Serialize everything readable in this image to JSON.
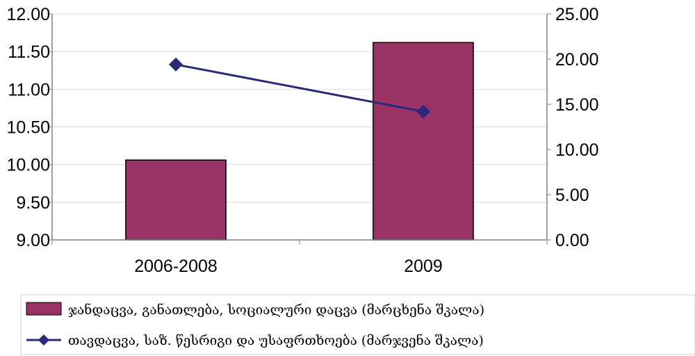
{
  "chart_data": {
    "type": "bar+line",
    "categories": [
      "2006-2008",
      "2009"
    ],
    "series": [
      {
        "name": "ჯანდაცვა, განათლება, სოციალური დაცვა (მარცხენა შკალა)",
        "type": "bar",
        "axis": "left",
        "values": [
          10.06,
          11.62
        ],
        "color": "#993366"
      },
      {
        "name": "თავდაცვა, საზ. წესრიგი და უსაფრთხოება (მარჯვენა შკალა)",
        "type": "line",
        "axis": "right",
        "values": [
          19.4,
          14.2
        ],
        "color": "#2a2a7a"
      }
    ],
    "y_left": {
      "min": 9.0,
      "max": 12.0,
      "ticks": [
        "9.00",
        "9.50",
        "10.00",
        "10.50",
        "11.00",
        "11.50",
        "12.00"
      ]
    },
    "y_right": {
      "min": 0.0,
      "max": 25.0,
      "ticks": [
        "0.00",
        "5.00",
        "10.00",
        "15.00",
        "20.00",
        "25.00"
      ]
    },
    "grid": true,
    "legend_position": "bottom"
  }
}
